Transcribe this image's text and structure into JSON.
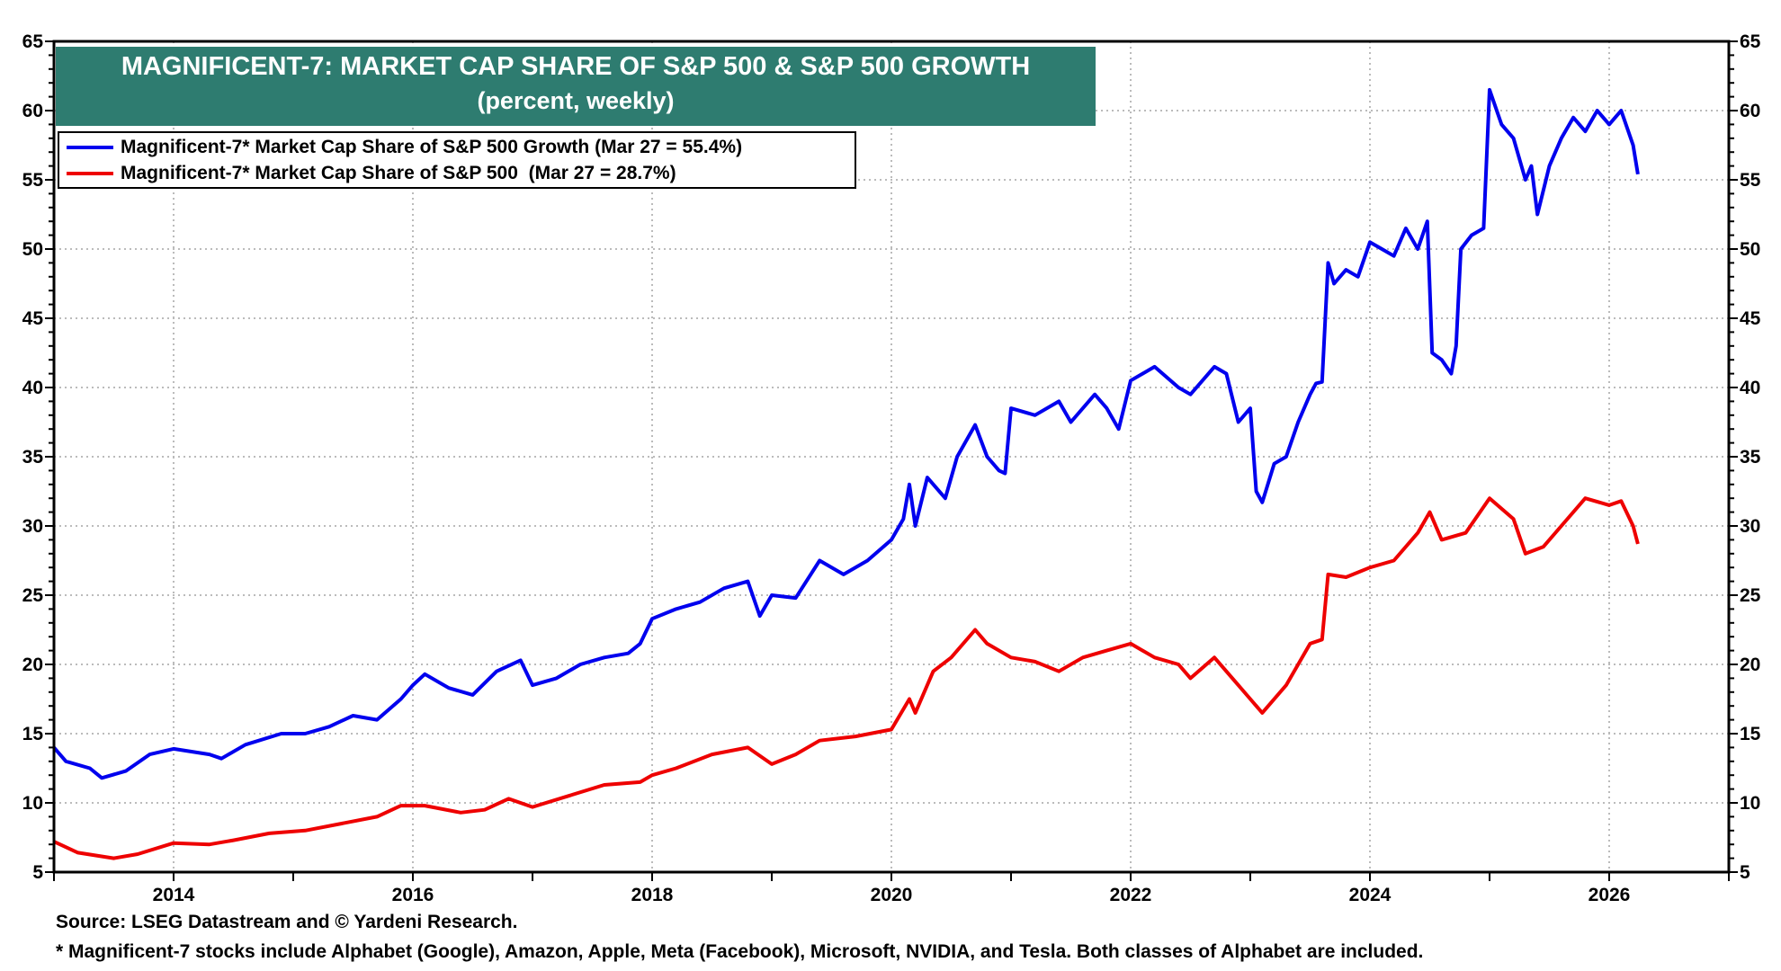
{
  "chart_data": {
    "type": "line",
    "title": "MAGNIFICENT-7: MARKET CAP SHARE OF S&P 500 & S&P 500 GROWTH",
    "subtitle": "(percent, weekly)",
    "xlabel": "",
    "ylabel": "",
    "xlim": [
      2013,
      2027
    ],
    "ylim": [
      5,
      65
    ],
    "x_ticks": [
      "2014",
      "2016",
      "2018",
      "2020",
      "2022",
      "2024",
      "2026"
    ],
    "y_ticks": [
      "5",
      "10",
      "15",
      "20",
      "25",
      "30",
      "35",
      "40",
      "45",
      "50",
      "55",
      "60",
      "65"
    ],
    "grid": true,
    "legend_placement": "top-left",
    "series": [
      {
        "name": "Magnificent-7* Market Cap Share of S&P 500 Growth (Mar 27 = 55.4%)",
        "color": "#0000ee",
        "x": [
          2013.0,
          2013.1,
          2013.3,
          2013.4,
          2013.6,
          2013.8,
          2014.0,
          2014.3,
          2014.4,
          2014.6,
          2014.9,
          2015.1,
          2015.3,
          2015.5,
          2015.7,
          2015.9,
          2016.0,
          2016.1,
          2016.3,
          2016.5,
          2016.7,
          2016.9,
          2017.0,
          2017.2,
          2017.4,
          2017.6,
          2017.8,
          2017.9,
          2018.0,
          2018.2,
          2018.4,
          2018.6,
          2018.8,
          2018.9,
          2019.0,
          2019.2,
          2019.4,
          2019.6,
          2019.8,
          2020.0,
          2020.1,
          2020.15,
          2020.2,
          2020.3,
          2020.45,
          2020.55,
          2020.7,
          2020.8,
          2020.9,
          2020.95,
          2021.0,
          2021.2,
          2021.4,
          2021.5,
          2021.7,
          2021.8,
          2021.9,
          2022.0,
          2022.2,
          2022.4,
          2022.5,
          2022.7,
          2022.8,
          2022.9,
          2023.0,
          2023.05,
          2023.1,
          2023.2,
          2023.3,
          2023.4,
          2023.5,
          2023.55,
          2023.6,
          2023.65,
          2023.7,
          2023.8,
          2023.9,
          2024.0,
          2024.1,
          2024.2,
          2024.3,
          2024.4,
          2024.48,
          2024.52,
          2024.6,
          2024.68,
          2024.72,
          2024.76,
          2024.85,
          2024.95,
          2025.0,
          2025.1,
          2025.2,
          2025.3,
          2025.35,
          2025.4,
          2025.5,
          2025.6,
          2025.7,
          2025.8,
          2025.9,
          2026.0,
          2026.1,
          2026.2,
          2026.24
        ],
        "y": [
          14,
          13,
          12.5,
          11.8,
          12.3,
          13.5,
          13.9,
          13.5,
          13.2,
          14.2,
          15.0,
          15.0,
          15.5,
          16.3,
          16.0,
          17.5,
          18.5,
          19.3,
          18.3,
          17.8,
          19.5,
          20.3,
          18.5,
          19.0,
          20.0,
          20.5,
          20.8,
          21.5,
          23.3,
          24.0,
          24.5,
          25.5,
          26.0,
          23.5,
          25.0,
          24.8,
          27.5,
          26.5,
          27.5,
          29.0,
          30.5,
          33.0,
          30.0,
          33.5,
          32.0,
          35.0,
          37.3,
          35.0,
          34.0,
          33.8,
          38.5,
          38.0,
          39.0,
          37.5,
          39.5,
          38.5,
          37.0,
          40.5,
          41.5,
          40.0,
          39.5,
          41.5,
          41.0,
          37.5,
          38.5,
          32.5,
          31.7,
          34.5,
          35.0,
          37.5,
          39.5,
          40.3,
          40.4,
          49.0,
          47.5,
          48.5,
          48.0,
          50.5,
          50.0,
          49.5,
          51.5,
          50.0,
          52.0,
          42.5,
          42.0,
          41.0,
          43.0,
          50.0,
          51.0,
          51.5,
          61.5,
          59.0,
          58.0,
          55.0,
          56.0,
          52.5,
          56.0,
          58.0,
          59.5,
          58.5,
          60.0,
          59.0,
          60.0,
          57.5,
          55.4
        ]
      },
      {
        "name": "Magnificent-7* Market Cap Share of S&P 500  (Mar 27 = 28.7%)",
        "color": "#ee0000",
        "x": [
          2013.0,
          2013.2,
          2013.5,
          2013.7,
          2014.0,
          2014.3,
          2014.5,
          2014.8,
          2015.1,
          2015.4,
          2015.7,
          2015.9,
          2016.1,
          2016.4,
          2016.6,
          2016.8,
          2017.0,
          2017.3,
          2017.6,
          2017.9,
          2018.0,
          2018.2,
          2018.5,
          2018.8,
          2019.0,
          2019.2,
          2019.4,
          2019.7,
          2020.0,
          2020.15,
          2020.2,
          2020.35,
          2020.5,
          2020.7,
          2020.8,
          2021.0,
          2021.2,
          2021.4,
          2021.6,
          2021.8,
          2022.0,
          2022.2,
          2022.4,
          2022.5,
          2022.7,
          2022.9,
          2023.0,
          2023.1,
          2023.3,
          2023.5,
          2023.6,
          2023.65,
          2023.8,
          2024.0,
          2024.2,
          2024.4,
          2024.5,
          2024.6,
          2024.8,
          2025.0,
          2025.2,
          2025.3,
          2025.45,
          2025.6,
          2025.8,
          2026.0,
          2026.1,
          2026.2,
          2026.24
        ],
        "y": [
          7.2,
          6.4,
          6.0,
          6.3,
          7.1,
          7.0,
          7.3,
          7.8,
          8.0,
          8.5,
          9.0,
          9.8,
          9.8,
          9.3,
          9.5,
          10.3,
          9.7,
          10.5,
          11.3,
          11.5,
          12.0,
          12.5,
          13.5,
          14.0,
          12.8,
          13.5,
          14.5,
          14.8,
          15.3,
          17.5,
          16.5,
          19.5,
          20.5,
          22.5,
          21.5,
          20.5,
          20.2,
          19.5,
          20.5,
          21.0,
          21.5,
          20.5,
          20.0,
          19.0,
          20.5,
          18.5,
          17.5,
          16.5,
          18.5,
          21.5,
          21.8,
          26.5,
          26.3,
          27.0,
          27.5,
          29.5,
          31.0,
          29.0,
          29.5,
          32.0,
          30.5,
          28.0,
          28.5,
          30.0,
          32.0,
          31.5,
          31.8,
          30.0,
          28.7
        ]
      }
    ]
  },
  "footer": {
    "source": "Source: LSEG Datastream and © Yardeni Research.",
    "note": "* Magnificent-7 stocks include Alphabet (Google), Amazon, Apple, Meta (Facebook), Microsoft, NVIDIA, and Tesla. Both classes of Alphabet are included."
  }
}
